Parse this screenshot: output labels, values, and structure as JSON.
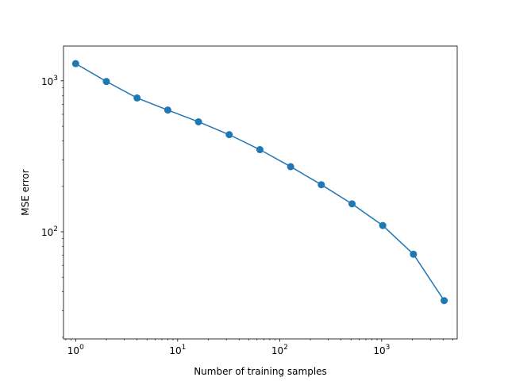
{
  "chart_data": {
    "type": "line",
    "title": "",
    "xlabel": "Number of training samples",
    "ylabel": "MSE error",
    "xscale": "log",
    "yscale": "log",
    "xlim": [
      0.76,
      5500
    ],
    "ylim": [
      19.5,
      1700
    ],
    "grid": false,
    "legend": "none",
    "x_ticks": [
      {
        "value": 1,
        "base": "10",
        "exp": "0"
      },
      {
        "value": 10,
        "base": "10",
        "exp": "1"
      },
      {
        "value": 100,
        "base": "10",
        "exp": "2"
      },
      {
        "value": 1000,
        "base": "10",
        "exp": "3"
      }
    ],
    "y_ticks": [
      {
        "value": 100,
        "base": "10",
        "exp": "2"
      },
      {
        "value": 1000,
        "base": "10",
        "exp": "3"
      }
    ],
    "series": [
      {
        "color": "#1f77b4",
        "marker": "circle",
        "x": [
          1,
          2,
          4,
          8,
          16,
          32,
          64,
          128,
          256,
          512,
          1024,
          2048,
          4096
        ],
        "y": [
          1300,
          990,
          770,
          640,
          535,
          440,
          350,
          270,
          205,
          153,
          110,
          71,
          35
        ]
      }
    ]
  }
}
